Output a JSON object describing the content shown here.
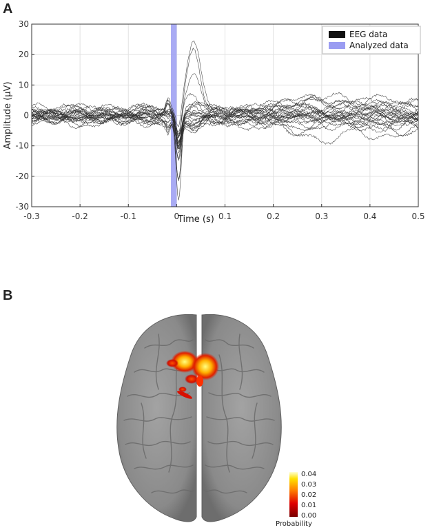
{
  "panels": {
    "a_label": "A",
    "b_label": "B"
  },
  "colors": {
    "eeg": "#2a2a2a",
    "analyzed": "#9a9cf2",
    "brain": "#8f8f8f"
  },
  "chart_data": {
    "type": "line",
    "xlabel": "Time (s)",
    "ylabel": "Amplitude (μV)",
    "xlim": [
      -0.3,
      0.5
    ],
    "ylim": [
      -30,
      30
    ],
    "xticks": [
      -0.3,
      -0.2,
      -0.1,
      0,
      0.1,
      0.2,
      0.3,
      0.4,
      0.5
    ],
    "xtick_labels": [
      "-0.3",
      "-0.2",
      "-0.1",
      "0",
      "0.1",
      "0.2",
      "0.3",
      "0.4",
      "0.5"
    ],
    "yticks": [
      30,
      20,
      10,
      0,
      -10,
      -20,
      -30
    ],
    "ytick_labels": [
      "30",
      "20",
      "10",
      "0",
      "-10",
      "-20",
      "-30"
    ],
    "grid": true,
    "legend_position": "top-right",
    "legend": [
      {
        "label": "EEG data",
        "color": "#111111"
      },
      {
        "label": "Analyzed data",
        "color": "#9a9cf2"
      }
    ],
    "analyzed_window": [
      -0.012,
      0.0
    ],
    "series_count": 24
  },
  "colorbar": {
    "title": "Probability",
    "ticks": [
      "0.04",
      "0.03",
      "0.02",
      "0.01",
      "0.00"
    ],
    "min": 0,
    "max": 0.04
  }
}
